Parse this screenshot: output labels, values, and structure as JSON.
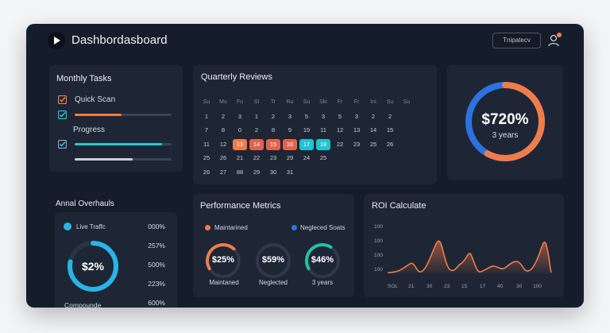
{
  "header": {
    "title": "Dashbordasboard",
    "button_label": "Tnipatecv"
  },
  "monthly_tasks": {
    "title": "Monthly Tasks",
    "items": [
      {
        "label": "Quick Scan",
        "checked": true,
        "progress": 0.48,
        "color": "#f07c4a"
      },
      {
        "label": "Progress",
        "checked": true,
        "progress": 0.9,
        "color": "#28c7d4"
      },
      {
        "label": "",
        "checked": false,
        "progress": 0.6,
        "color": "#c9ced6"
      }
    ]
  },
  "quarterly_reviews": {
    "title": "Quarterly Reviews",
    "weekdays": [
      "Su",
      "Mu",
      "Fu",
      "St",
      "Tr",
      "Ru",
      "Su",
      "Ski",
      "Fr",
      "Fr",
      "Ini",
      "Su",
      "Su"
    ],
    "rows": [
      [
        "1",
        "2",
        "3",
        "1",
        "2",
        "3",
        "5",
        "3",
        "5",
        "3",
        "2",
        "2",
        ""
      ],
      [
        "7",
        "8",
        "0",
        "2",
        "8",
        "9",
        "19",
        "11",
        "12",
        "13",
        "14",
        "15",
        ""
      ],
      [
        "11",
        "12",
        "13",
        "14",
        "15",
        "16",
        "17",
        "18",
        "22",
        "23",
        "25",
        "26",
        ""
      ],
      [
        "25",
        "26",
        "21",
        "22",
        "23",
        "29",
        "24",
        "25",
        "",
        "",
        "",
        "",
        ""
      ],
      [
        "26",
        "27",
        "88",
        "29",
        "30",
        "31",
        "",
        "",
        "",
        "",
        "",
        "",
        ""
      ]
    ],
    "highlights": {
      "orange": "#f07c4a",
      "red": "#e2624f",
      "teal": "#22c2d2"
    }
  },
  "summary_donut": {
    "value": "$720%",
    "subtitle": "3 years",
    "fraction_orange": 0.58,
    "color_orange": "#f07c4a",
    "color_blue": "#2d73e0"
  },
  "annual_overhauls": {
    "title": "Annal Overhauls",
    "legend": "Live Traffc",
    "donut_value": "$2%",
    "donut_label": "Compounde",
    "values": [
      "000%",
      "257%",
      "500%",
      "223%",
      "600%"
    ],
    "color": "#28b4e6"
  },
  "performance": {
    "title": "Performance Metrics",
    "legend_a": "Maintarined",
    "legend_b": "Negleced Soats",
    "color_a": "#f07c4a",
    "color_b": "#2d73e0",
    "rings": [
      {
        "value": "$25%",
        "label": "Maintaned",
        "fraction": 0.45,
        "color": "#f07c4a"
      },
      {
        "value": "$59%",
        "label": "Neglected",
        "fraction": 0.0,
        "color": "#2d73e0"
      },
      {
        "value": "$46%",
        "label": "3 years",
        "fraction": 0.42,
        "color": "#22c2a4"
      }
    ]
  },
  "roi": {
    "title": "ROI Calculate",
    "y_ticks": [
      "100",
      "100",
      "100",
      "100"
    ],
    "x_ticks": [
      "SOL",
      "21",
      "30",
      "23",
      "15",
      "17",
      "40",
      "30",
      "100"
    ],
    "color": "#f07c4a"
  }
}
